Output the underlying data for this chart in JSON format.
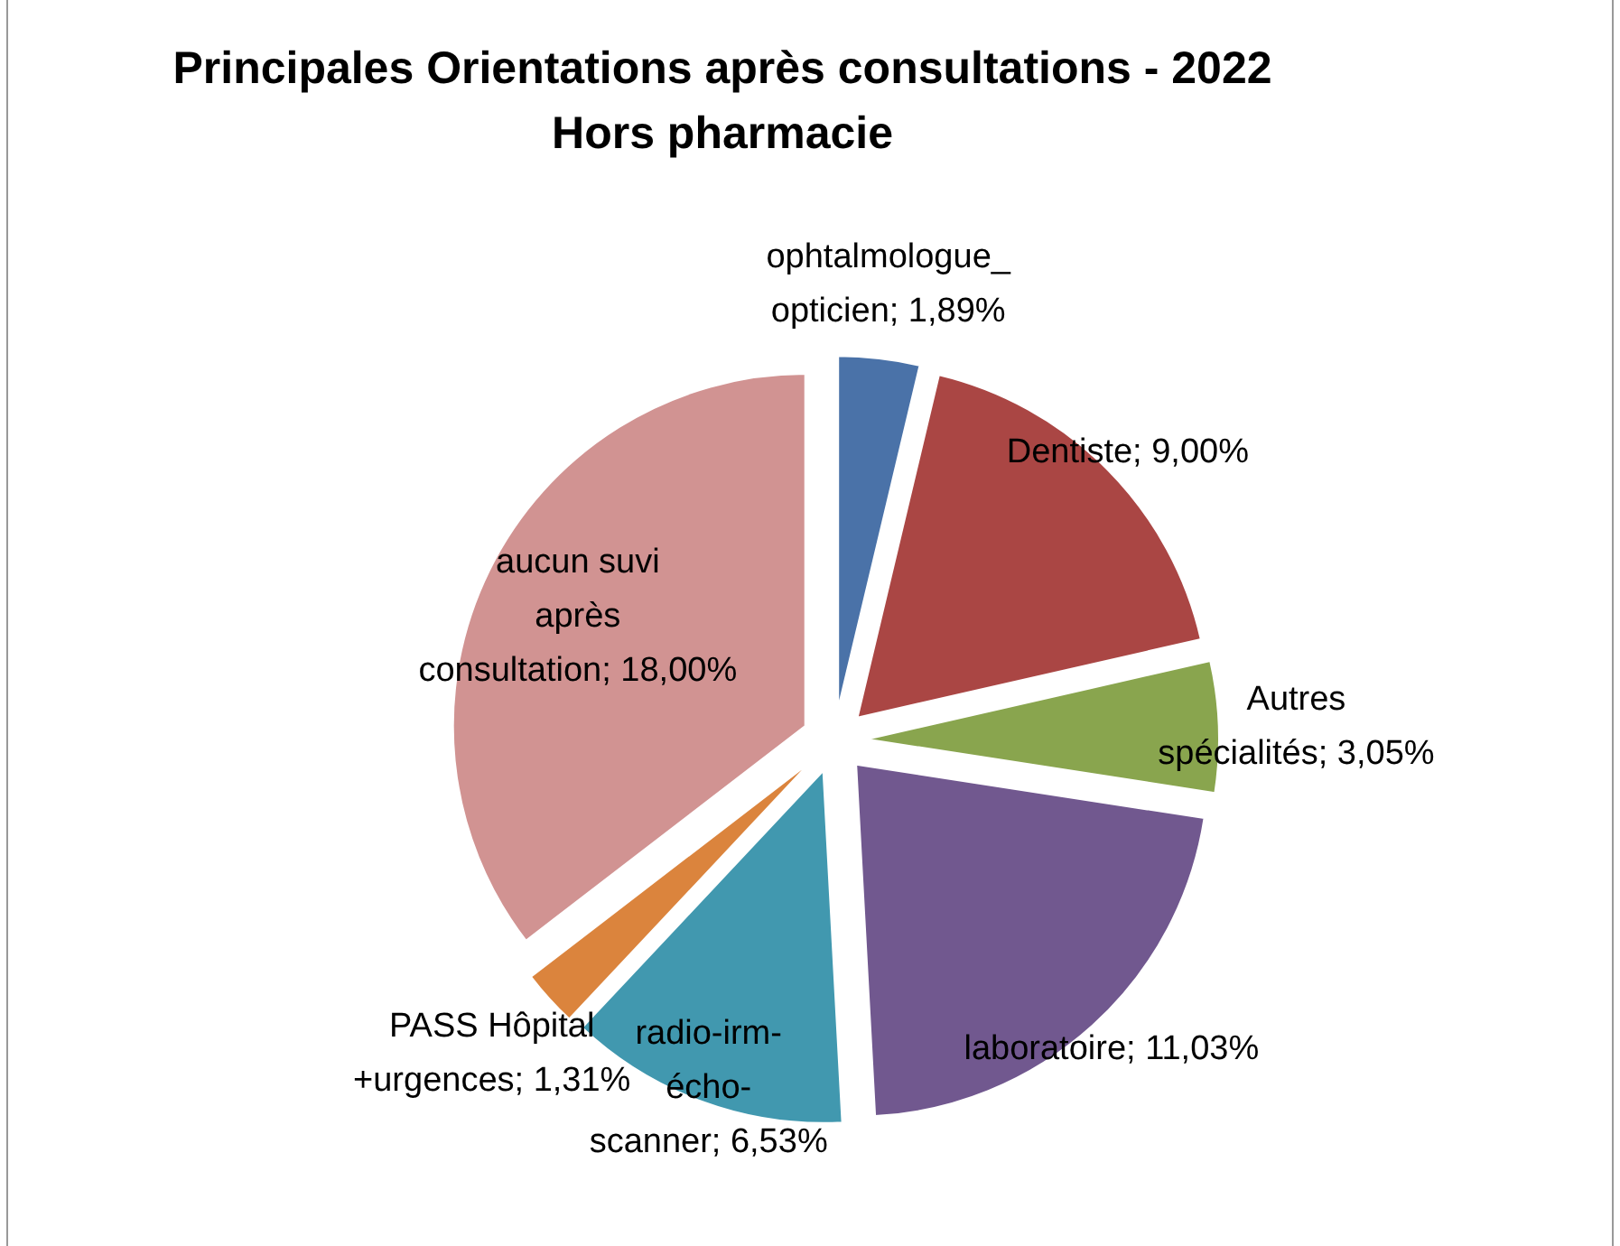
{
  "chart_data": {
    "type": "pie",
    "title": "Principales Orientations après consultations - 2022\nHors pharmacie",
    "categories": [
      "ophtalmologue_ opticien",
      "Dentiste",
      "Autres spécialités",
      "laboratoire",
      "radio-irm-écho-scanner",
      "PASS Hôpital +urgences",
      "aucun suvi après consultation"
    ],
    "values": [
      1.89,
      9.0,
      3.05,
      11.03,
      6.53,
      1.31,
      18.0
    ],
    "value_labels": [
      "1,89%",
      "9,00%",
      "3,05%",
      "11,03%",
      "6,53%",
      "1,31%",
      "18,00%"
    ],
    "colors": [
      "#4a72a8",
      "#aa4644",
      "#89a54e",
      "#71588f",
      "#4198af",
      "#db843d",
      "#d19392"
    ]
  }
}
